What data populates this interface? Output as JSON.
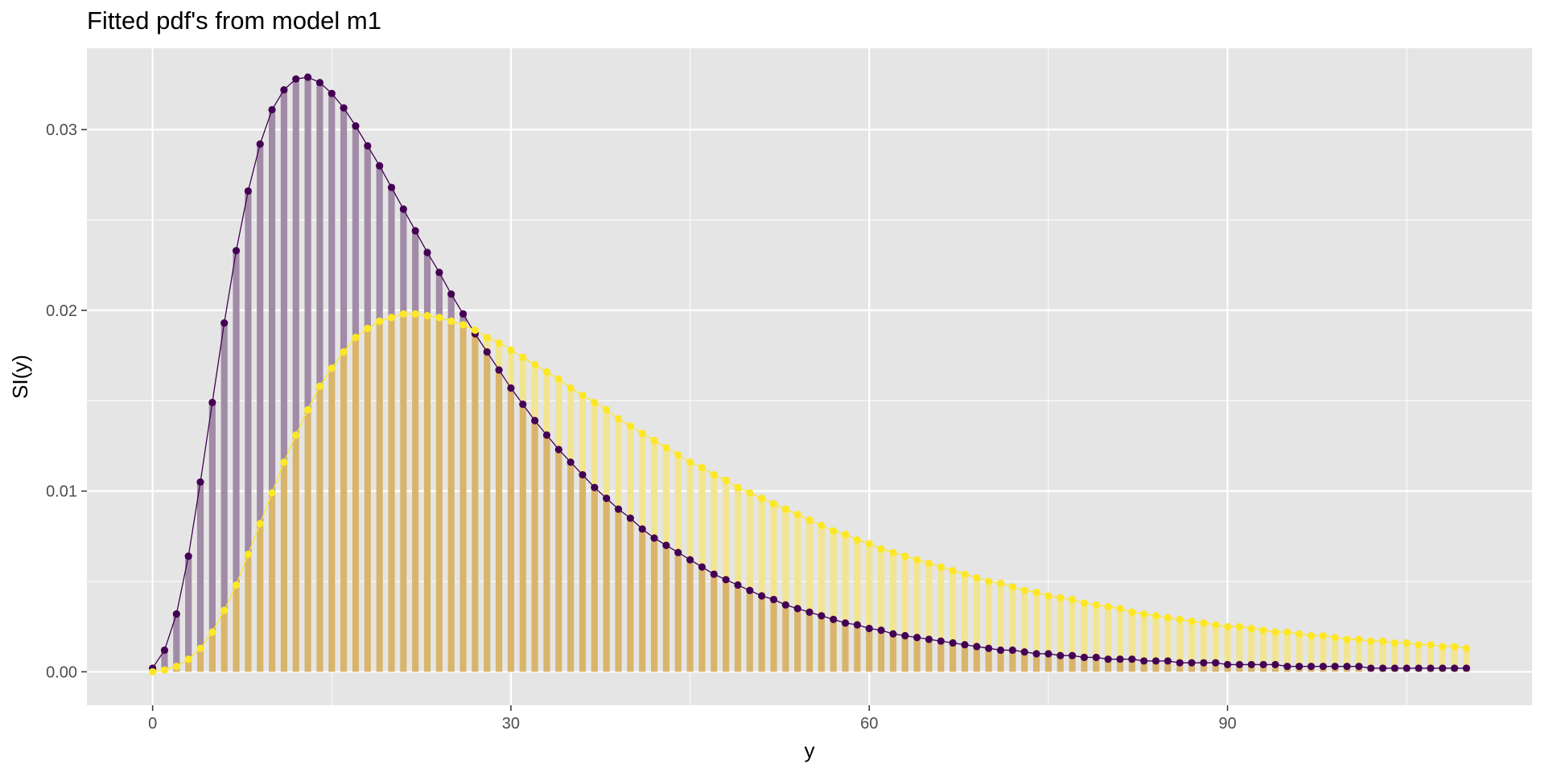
{
  "chart_data": {
    "type": "bar",
    "title": "Fitted pdf's from model m1",
    "xlabel": "y",
    "ylabel": "SI(y)",
    "xlim": [
      -5.5,
      115.5
    ],
    "ylim": [
      -0.00185,
      0.0345
    ],
    "x_ticks": [
      0,
      30,
      60,
      90
    ],
    "x_tick_labels": [
      "0",
      "30",
      "60",
      "90"
    ],
    "y_ticks": [
      0,
      0.01,
      0.02,
      0.03
    ],
    "y_tick_labels": [
      "0.00",
      "0.01",
      "0.02",
      "0.03"
    ],
    "grid": true,
    "legend": "none",
    "panel_background": "#e5e5e5",
    "grid_color": "#ffffff",
    "x_range": [
      0,
      110
    ],
    "series": [
      {
        "color": "#440154",
        "bar_color": "#a18ba6",
        "values": [
          0.0002,
          0.0012,
          0.0032,
          0.0064,
          0.0105,
          0.0149,
          0.0193,
          0.0233,
          0.0266,
          0.0292,
          0.0311,
          0.0322,
          0.0328,
          0.0329,
          0.0326,
          0.032,
          0.0312,
          0.0302,
          0.0291,
          0.028,
          0.0268,
          0.0256,
          0.0244,
          0.0232,
          0.0221,
          0.0209,
          0.0198,
          0.0187,
          0.0177,
          0.0167,
          0.0157,
          0.0148,
          0.0139,
          0.0131,
          0.0123,
          0.0116,
          0.0109,
          0.0102,
          0.0096,
          0.009,
          0.0085,
          0.0079,
          0.0074,
          0.007,
          0.0066,
          0.0062,
          0.0058,
          0.0054,
          0.0051,
          0.0048,
          0.0045,
          0.0042,
          0.004,
          0.0037,
          0.0035,
          0.0033,
          0.0031,
          0.0029,
          0.0027,
          0.0026,
          0.0024,
          0.0023,
          0.0021,
          0.002,
          0.0019,
          0.0018,
          0.0017,
          0.0016,
          0.0015,
          0.0014,
          0.0013,
          0.0012,
          0.0012,
          0.0011,
          0.001,
          0.001,
          0.0009,
          0.0009,
          0.0008,
          0.0008,
          0.0007,
          0.0007,
          0.0007,
          0.0006,
          0.0006,
          0.0006,
          0.0005,
          0.0005,
          0.0005,
          0.0005,
          0.0004,
          0.0004,
          0.0004,
          0.0004,
          0.0004,
          0.0003,
          0.0003,
          0.0003,
          0.0003,
          0.0003,
          0.0003,
          0.0003,
          0.0002,
          0.0002,
          0.0002,
          0.0002,
          0.0002,
          0.0002,
          0.0002,
          0.0002,
          0.0002
        ]
      },
      {
        "color": "#fde725",
        "bar_color": "#d9b56c",
        "bar_color_light": "#f2e591",
        "values": [
          0.0,
          0.0001,
          0.0003,
          0.0007,
          0.0013,
          0.0022,
          0.0034,
          0.0048,
          0.0065,
          0.0082,
          0.0099,
          0.0116,
          0.0131,
          0.0145,
          0.0158,
          0.0168,
          0.0177,
          0.0185,
          0.019,
          0.0194,
          0.0196,
          0.0198,
          0.0198,
          0.0197,
          0.0196,
          0.0194,
          0.0192,
          0.0189,
          0.0185,
          0.0182,
          0.0178,
          0.0174,
          0.017,
          0.0166,
          0.0162,
          0.0157,
          0.0153,
          0.0149,
          0.0145,
          0.014,
          0.0136,
          0.0132,
          0.0128,
          0.0124,
          0.012,
          0.0116,
          0.0113,
          0.0109,
          0.0106,
          0.0102,
          0.0099,
          0.0096,
          0.0093,
          0.009,
          0.0087,
          0.0084,
          0.0081,
          0.0078,
          0.0076,
          0.0073,
          0.0071,
          0.0068,
          0.0066,
          0.0064,
          0.0062,
          0.006,
          0.0058,
          0.0056,
          0.0054,
          0.0052,
          0.005,
          0.0049,
          0.0047,
          0.0045,
          0.0044,
          0.0042,
          0.0041,
          0.004,
          0.0038,
          0.0037,
          0.0036,
          0.0035,
          0.0033,
          0.0032,
          0.0031,
          0.003,
          0.0029,
          0.0028,
          0.0027,
          0.0026,
          0.0025,
          0.0025,
          0.0024,
          0.0023,
          0.0022,
          0.0022,
          0.0021,
          0.002,
          0.002,
          0.0019,
          0.0018,
          0.0018,
          0.0017,
          0.0017,
          0.0016,
          0.0016,
          0.0015,
          0.0015,
          0.0014,
          0.0014,
          0.0013
        ]
      }
    ]
  }
}
